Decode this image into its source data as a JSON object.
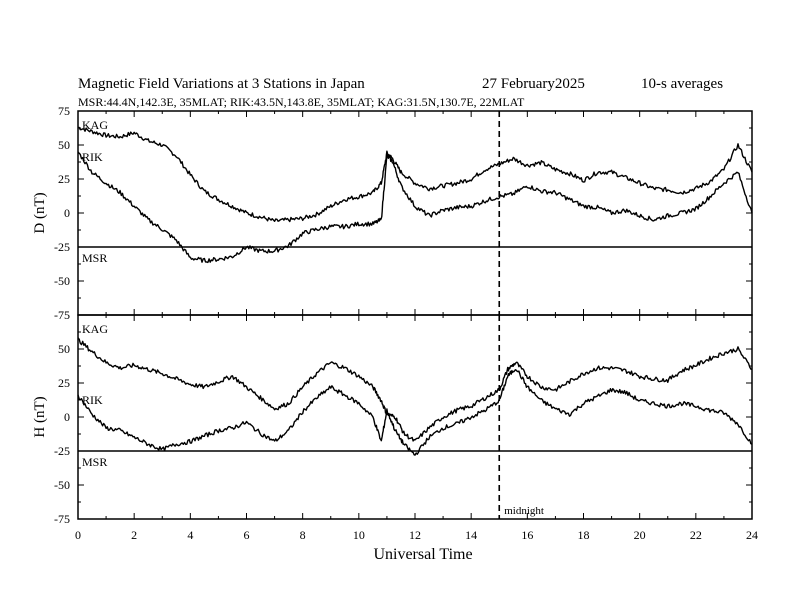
{
  "header": {
    "title": "Magnetic Field Variations at 3 Stations in Japan",
    "date": "27 February2025",
    "averaging": "10-s averages",
    "stations_line": "MSR:44.4N,142.3E, 35MLAT;  RIK:43.5N,143.8E, 35MLAT;  KAG:31.5N,130.7E, 22MLAT"
  },
  "colors": {
    "line": "#000000",
    "background": "#ffffff"
  },
  "chart_data": {
    "type": "line",
    "xlabel": "Universal Time",
    "xlim": [
      0,
      24
    ],
    "x_ticks": [
      0,
      2,
      4,
      6,
      8,
      10,
      12,
      14,
      16,
      18,
      20,
      22,
      24
    ],
    "x_ticks_labels": [
      "0",
      "2",
      "4",
      "6",
      "8",
      "10",
      "12",
      "14",
      "16",
      "18",
      "20",
      "22",
      "24"
    ],
    "annotation": {
      "x": 15,
      "style": "dashed",
      "label": "midnight"
    },
    "grid": false,
    "panels": [
      {
        "ylabel": "D (nT)",
        "ylim": [
          -75,
          75
        ],
        "y_ticks": [
          75,
          50,
          25,
          0,
          -25,
          -50,
          -75
        ],
        "y_ticks_labels": [
          "75",
          "50",
          "25",
          "0",
          "-25",
          "-50",
          "-75"
        ],
        "series": [
          {
            "name": "KAG",
            "x": [
              0,
              0.5,
              1,
              1.5,
              2,
              2.5,
              3,
              3.5,
              4,
              4.5,
              5,
              5.5,
              6,
              6.5,
              7,
              7.5,
              8,
              8.5,
              9,
              9.5,
              10,
              10.5,
              10.8,
              11,
              11.2,
              11.5,
              12,
              12.5,
              13,
              13.5,
              14,
              14.5,
              15,
              15.5,
              16,
              16.5,
              17,
              17.5,
              18,
              18.5,
              19,
              19.5,
              20,
              20.5,
              21,
              21.5,
              22,
              22.5,
              23,
              23.5,
              24
            ],
            "values": [
              63,
              60,
              57,
              56,
              59,
              53,
              50,
              42,
              28,
              16,
              10,
              5,
              0,
              -3,
              -6,
              -5,
              -4,
              -1,
              5,
              10,
              12,
              15,
              22,
              44,
              40,
              30,
              22,
              18,
              20,
              22,
              25,
              32,
              36,
              40,
              35,
              37,
              32,
              29,
              24,
              30,
              30,
              26,
              22,
              18,
              17,
              15,
              18,
              23,
              32,
              50,
              30
            ]
          },
          {
            "name": "RIK",
            "x": [
              0,
              0.5,
              1,
              1.5,
              2,
              2.5,
              3,
              3.5,
              4,
              4.5,
              5,
              5.5,
              6,
              6.5,
              7,
              7.5,
              8,
              8.5,
              9,
              9.5,
              10,
              10.5,
              10.8,
              11,
              11.2,
              11.5,
              12,
              12.5,
              13,
              13.5,
              14,
              14.5,
              15,
              15.5,
              16,
              16.5,
              17,
              17.5,
              18,
              18.5,
              19,
              19.5,
              20,
              20.5,
              21,
              21.5,
              22,
              22.5,
              23,
              23.5,
              24
            ],
            "values": [
              45,
              30,
              22,
              15,
              5,
              -5,
              -12,
              -20,
              -33,
              -35,
              -34,
              -32,
              -25,
              -28,
              -28,
              -24,
              -15,
              -12,
              -10,
              -10,
              -8,
              -8,
              -5,
              42,
              38,
              20,
              5,
              -2,
              2,
              4,
              5,
              9,
              12,
              14,
              20,
              16,
              15,
              10,
              5,
              4,
              0,
              2,
              -2,
              -5,
              -2,
              0,
              3,
              12,
              22,
              30,
              0
            ]
          },
          {
            "name": "MSR",
            "x": [
              0,
              24
            ],
            "values": [
              -25,
              -25
            ]
          }
        ]
      },
      {
        "ylabel": "H (nT)",
        "ylim": [
          -75,
          75
        ],
        "y_ticks": [
          75,
          50,
          25,
          0,
          -25,
          -50,
          -75
        ],
        "y_ticks_labels": [
          "",
          "50",
          "25",
          "0",
          "-25",
          "-50",
          "-75"
        ],
        "series": [
          {
            "name": "KAG",
            "x": [
              0,
              0.5,
              1,
              1.5,
              2,
              2.5,
              3,
              3.5,
              4,
              4.5,
              5,
              5.5,
              6,
              6.5,
              7,
              7.5,
              8,
              8.5,
              9,
              9.5,
              10,
              10.5,
              10.8,
              11,
              11.3,
              11.6,
              12,
              12.5,
              13,
              13.5,
              14,
              14.5,
              15,
              15.3,
              15.6,
              16,
              16.5,
              17,
              17.5,
              18,
              18.5,
              19,
              19.5,
              20,
              20.5,
              21,
              21.5,
              22,
              22.5,
              23,
              23.5,
              24
            ],
            "values": [
              57,
              48,
              40,
              36,
              38,
              35,
              32,
              28,
              24,
              22,
              26,
              30,
              22,
              14,
              6,
              10,
              22,
              32,
              40,
              36,
              30,
              22,
              12,
              2,
              0,
              -12,
              -18,
              -8,
              0,
              5,
              8,
              14,
              20,
              35,
              40,
              30,
              22,
              20,
              26,
              32,
              36,
              36,
              34,
              30,
              28,
              27,
              34,
              38,
              43,
              47,
              50,
              35
            ]
          },
          {
            "name": "RIK",
            "x": [
              0,
              0.5,
              1,
              1.5,
              2,
              2.5,
              3,
              3.5,
              4,
              4.5,
              5,
              5.5,
              6,
              6.5,
              7,
              7.5,
              8,
              8.5,
              9,
              9.5,
              10,
              10.5,
              10.8,
              11,
              11.3,
              11.6,
              12,
              12.5,
              13,
              13.5,
              14,
              14.5,
              15,
              15.3,
              15.6,
              16,
              16.5,
              17,
              17.5,
              18,
              18.5,
              19,
              19.5,
              20,
              20.5,
              21,
              21.5,
              22,
              22.5,
              23,
              23.5,
              24
            ],
            "values": [
              16,
              2,
              -8,
              -10,
              -15,
              -20,
              -24,
              -20,
              -18,
              -14,
              -10,
              -8,
              -4,
              -12,
              -18,
              -10,
              4,
              14,
              22,
              16,
              10,
              0,
              -18,
              5,
              -10,
              -20,
              -28,
              -15,
              -8,
              -5,
              0,
              5,
              12,
              30,
              36,
              22,
              12,
              6,
              2,
              10,
              15,
              20,
              18,
              12,
              10,
              8,
              10,
              8,
              5,
              3,
              -5,
              -20
            ]
          },
          {
            "name": "MSR",
            "x": [
              0,
              24
            ],
            "values": [
              -25,
              -25
            ]
          }
        ]
      }
    ]
  }
}
